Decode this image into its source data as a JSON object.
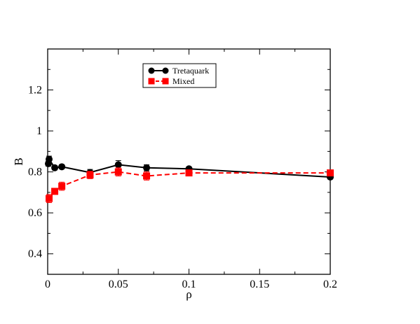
{
  "chart_data": {
    "type": "line",
    "xlabel": "ρ",
    "ylabel": "B",
    "xlim": [
      0,
      0.2
    ],
    "ylim": [
      0.3,
      1.4
    ],
    "xticks": [
      0,
      0.05,
      0.1,
      0.15,
      0.2
    ],
    "xtick_labels": [
      "0",
      "0.05",
      "0.1",
      "0.15",
      "0.2"
    ],
    "yticks": [
      0.4,
      0.6,
      0.8,
      1.0,
      1.2
    ],
    "ytick_labels": [
      "0.4",
      "0.6",
      "0.8",
      "1",
      "1.2"
    ],
    "grid": false,
    "legend_position": "top-center",
    "series": [
      {
        "name": "Tretaquark",
        "color": "#000000",
        "marker": "circle",
        "line": "solid",
        "x": [
          0.0005,
          0.001,
          0.005,
          0.01,
          0.03,
          0.05,
          0.07,
          0.1,
          0.2
        ],
        "y": [
          0.84,
          0.862,
          0.82,
          0.825,
          0.797,
          0.835,
          0.82,
          0.815,
          0.775
        ],
        "err": [
          0.012,
          0.015,
          0.01,
          0.01,
          0.015,
          0.02,
          0.015,
          0.01,
          0.01
        ]
      },
      {
        "name": "Mixed",
        "color": "#ff0000",
        "marker": "square",
        "line": "dashed",
        "x": [
          0.001,
          0.005,
          0.01,
          0.03,
          0.05,
          0.07,
          0.1,
          0.2
        ],
        "y": [
          0.67,
          0.705,
          0.73,
          0.785,
          0.8,
          0.78,
          0.795,
          0.795
        ],
        "err": [
          0.02,
          0.015,
          0.02,
          0.018,
          0.02,
          0.02,
          0.012,
          0.012
        ]
      }
    ]
  }
}
